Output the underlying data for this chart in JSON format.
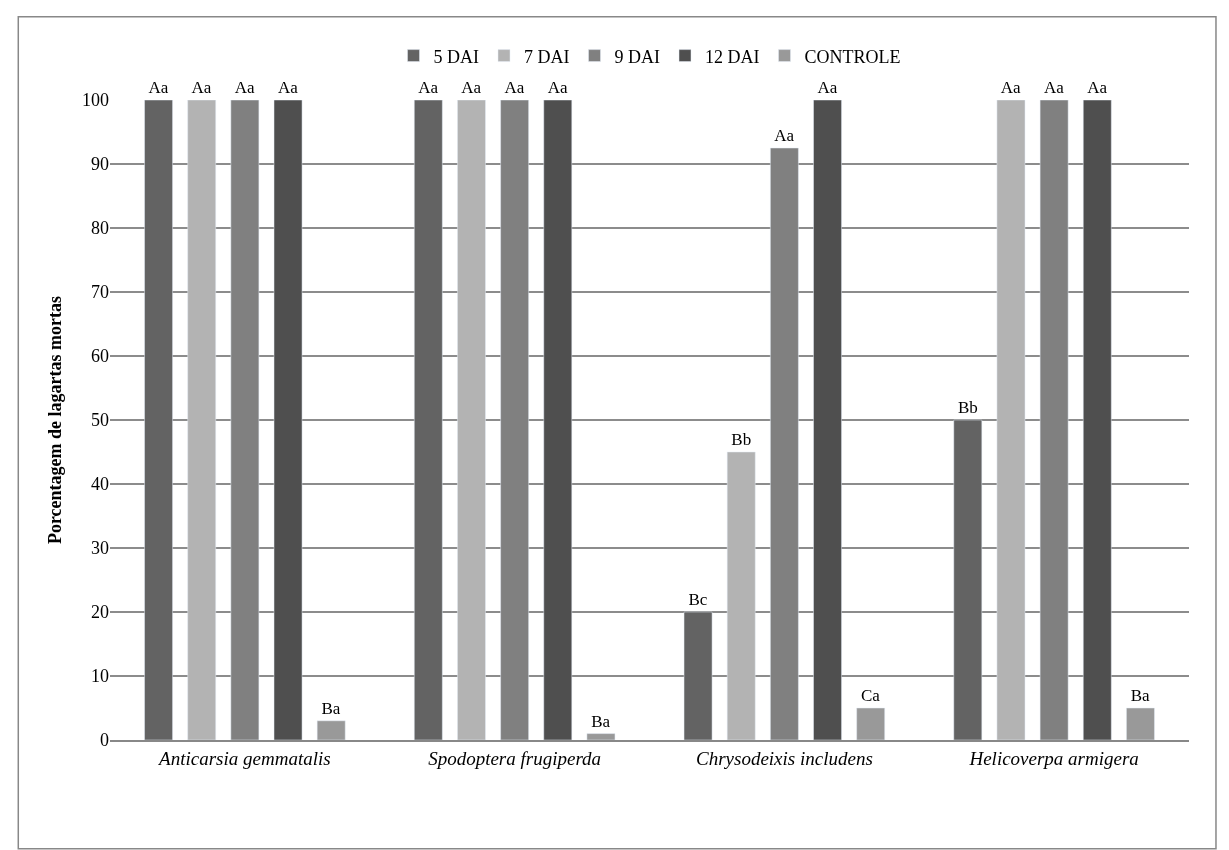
{
  "chart_data": {
    "type": "bar",
    "ylabel": "Porcentagem de lagartas mortas",
    "categories": [
      "Anticarsia gemmatalis",
      "Spodoptera frugiperda",
      "Chrysodeixis includens",
      "Helicoverpa armigera"
    ],
    "series": [
      {
        "name": "5 DAI",
        "color": "#636363",
        "values": [
          100,
          100,
          20,
          50
        ],
        "value_labels": [
          "Aa",
          "Aa",
          "Bc",
          "Bb"
        ]
      },
      {
        "name": "7 DAI",
        "color": "#b3b3b3",
        "values": [
          100,
          100,
          45,
          100
        ],
        "value_labels": [
          "Aa",
          "Aa",
          "Bb",
          "Aa"
        ]
      },
      {
        "name": "9 DAI",
        "color": "#808080",
        "values": [
          100,
          100,
          92.5,
          100
        ],
        "value_labels": [
          "Aa",
          "Aa",
          "Aa",
          "Aa"
        ]
      },
      {
        "name": "12 DAI",
        "color": "#4f4f4f",
        "values": [
          100,
          100,
          100,
          100
        ],
        "value_labels": [
          "Aa",
          "Aa",
          "Aa",
          "Aa"
        ]
      },
      {
        "name": "CONTROLE",
        "color": "#999999",
        "values": [
          3,
          1,
          5,
          5
        ],
        "value_labels": [
          "Ba",
          "Ba",
          "Ca",
          "Ba"
        ]
      }
    ],
    "ylim": [
      0,
      100
    ],
    "yticks": [
      0,
      10,
      20,
      30,
      40,
      50,
      60,
      70,
      80,
      90,
      100
    ],
    "grid": "y",
    "legend": "top"
  }
}
